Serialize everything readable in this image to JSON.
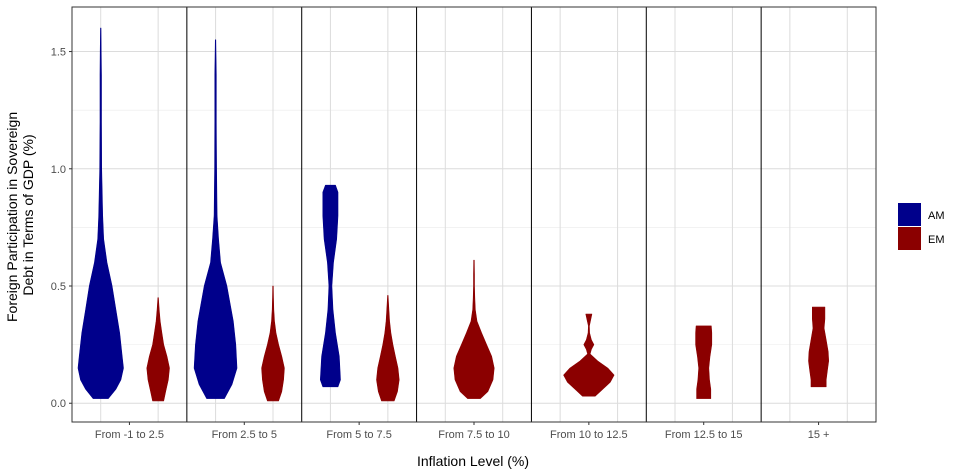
{
  "chart_data": {
    "type": "violin",
    "xlabel": "Inflation Level (%)",
    "ylabel_lines": [
      "Foreign Participation in Sovereign",
      "Debt in Terms of GDP (%)"
    ],
    "ylim": [
      -0.08,
      1.69
    ],
    "yticks": [
      0.0,
      0.5,
      1.0,
      1.5
    ],
    "ytick_labels": [
      "0.0",
      "0.5",
      "1.0",
      "1.5"
    ],
    "grid": true,
    "legend_position": "right",
    "categories": [
      "From -1 to 2.5",
      "From 2.5 to 5",
      "From 5 to 7.5",
      "From 7.5 to 10",
      "From 10 to 12.5",
      "From 12.5 to 15",
      "15 +"
    ],
    "series": [
      {
        "name": "AM",
        "color": "#00008B",
        "violins": [
          {
            "category": "From -1 to 2.5",
            "min": 0.02,
            "max": 1.6,
            "profile": [
              [
                0.02,
                0.3
              ],
              [
                0.06,
                0.6
              ],
              [
                0.1,
                0.8
              ],
              [
                0.15,
                0.9
              ],
              [
                0.2,
                0.85
              ],
              [
                0.3,
                0.75
              ],
              [
                0.4,
                0.6
              ],
              [
                0.5,
                0.45
              ],
              [
                0.6,
                0.25
              ],
              [
                0.7,
                0.12
              ],
              [
                0.8,
                0.08
              ],
              [
                0.9,
                0.06
              ],
              [
                1.0,
                0.04
              ],
              [
                1.2,
                0.03
              ],
              [
                1.4,
                0.03
              ],
              [
                1.5,
                0.02
              ],
              [
                1.6,
                0.01
              ]
            ]
          },
          {
            "category": "From 2.5 to 5",
            "min": 0.02,
            "max": 1.55,
            "profile": [
              [
                0.02,
                0.35
              ],
              [
                0.08,
                0.65
              ],
              [
                0.15,
                0.85
              ],
              [
                0.25,
                0.8
              ],
              [
                0.35,
                0.7
              ],
              [
                0.5,
                0.45
              ],
              [
                0.6,
                0.2
              ],
              [
                0.7,
                0.12
              ],
              [
                0.8,
                0.06
              ],
              [
                1.0,
                0.04
              ],
              [
                1.2,
                0.03
              ],
              [
                1.4,
                0.03
              ],
              [
                1.55,
                0.01
              ]
            ]
          },
          {
            "category": "From 5 to 7.5",
            "min": 0.07,
            "max": 0.93,
            "profile": [
              [
                0.07,
                0.3
              ],
              [
                0.1,
                0.4
              ],
              [
                0.2,
                0.35
              ],
              [
                0.3,
                0.2
              ],
              [
                0.4,
                0.1
              ],
              [
                0.5,
                0.06
              ],
              [
                0.6,
                0.12
              ],
              [
                0.7,
                0.25
              ],
              [
                0.8,
                0.3
              ],
              [
                0.9,
                0.3
              ],
              [
                0.93,
                0.2
              ]
            ]
          }
        ]
      },
      {
        "name": "EM",
        "color": "#8B0000",
        "violins": [
          {
            "category": "From -1 to 2.5",
            "min": 0.01,
            "max": 0.45,
            "profile": [
              [
                0.01,
                0.22
              ],
              [
                0.05,
                0.3
              ],
              [
                0.1,
                0.4
              ],
              [
                0.15,
                0.45
              ],
              [
                0.2,
                0.35
              ],
              [
                0.25,
                0.22
              ],
              [
                0.3,
                0.15
              ],
              [
                0.35,
                0.08
              ],
              [
                0.4,
                0.04
              ],
              [
                0.45,
                0.01
              ]
            ]
          },
          {
            "category": "From 2.5 to 5",
            "min": 0.01,
            "max": 0.5,
            "profile": [
              [
                0.01,
                0.22
              ],
              [
                0.05,
                0.35
              ],
              [
                0.1,
                0.42
              ],
              [
                0.15,
                0.45
              ],
              [
                0.2,
                0.35
              ],
              [
                0.25,
                0.22
              ],
              [
                0.3,
                0.12
              ],
              [
                0.35,
                0.06
              ],
              [
                0.4,
                0.03
              ],
              [
                0.45,
                0.02
              ],
              [
                0.5,
                0.01
              ]
            ]
          },
          {
            "category": "From 5 to 7.5",
            "min": 0.01,
            "max": 0.46,
            "profile": [
              [
                0.01,
                0.25
              ],
              [
                0.05,
                0.38
              ],
              [
                0.1,
                0.45
              ],
              [
                0.15,
                0.4
              ],
              [
                0.2,
                0.3
              ],
              [
                0.25,
                0.2
              ],
              [
                0.3,
                0.12
              ],
              [
                0.35,
                0.07
              ],
              [
                0.4,
                0.04
              ],
              [
                0.46,
                0.01
              ]
            ]
          },
          {
            "category": "From 7.5 to 10",
            "min": 0.02,
            "max": 0.61,
            "profile": [
              [
                0.02,
                0.25
              ],
              [
                0.05,
                0.55
              ],
              [
                0.1,
                0.75
              ],
              [
                0.15,
                0.8
              ],
              [
                0.2,
                0.7
              ],
              [
                0.25,
                0.5
              ],
              [
                0.3,
                0.3
              ],
              [
                0.35,
                0.12
              ],
              [
                0.4,
                0.05
              ],
              [
                0.45,
                0.03
              ],
              [
                0.5,
                0.02
              ],
              [
                0.55,
                0.02
              ],
              [
                0.61,
                0.01
              ]
            ]
          },
          {
            "category": "From 10 to 12.5",
            "min": 0.03,
            "max": 0.38,
            "profile": [
              [
                0.03,
                0.25
              ],
              [
                0.06,
                0.55
              ],
              [
                0.09,
                0.85
              ],
              [
                0.12,
                1.0
              ],
              [
                0.15,
                0.75
              ],
              [
                0.18,
                0.35
              ],
              [
                0.21,
                0.05
              ],
              [
                0.23,
                0.1
              ],
              [
                0.25,
                0.2
              ],
              [
                0.27,
                0.1
              ],
              [
                0.3,
                0.03
              ],
              [
                0.33,
                0.02
              ],
              [
                0.36,
                0.08
              ],
              [
                0.38,
                0.12
              ]
            ]
          },
          {
            "category": "From 12.5 to 15",
            "min": 0.02,
            "max": 0.33,
            "profile": [
              [
                0.02,
                0.28
              ],
              [
                0.06,
                0.28
              ],
              [
                0.1,
                0.23
              ],
              [
                0.15,
                0.2
              ],
              [
                0.2,
                0.25
              ],
              [
                0.25,
                0.32
              ],
              [
                0.3,
                0.32
              ],
              [
                0.33,
                0.3
              ]
            ]
          },
          {
            "category": "15 +",
            "min": 0.07,
            "max": 0.41,
            "profile": [
              [
                0.07,
                0.3
              ],
              [
                0.1,
                0.3
              ],
              [
                0.14,
                0.35
              ],
              [
                0.18,
                0.4
              ],
              [
                0.22,
                0.38
              ],
              [
                0.27,
                0.3
              ],
              [
                0.32,
                0.22
              ],
              [
                0.36,
                0.25
              ],
              [
                0.41,
                0.25
              ]
            ]
          }
        ]
      }
    ]
  }
}
